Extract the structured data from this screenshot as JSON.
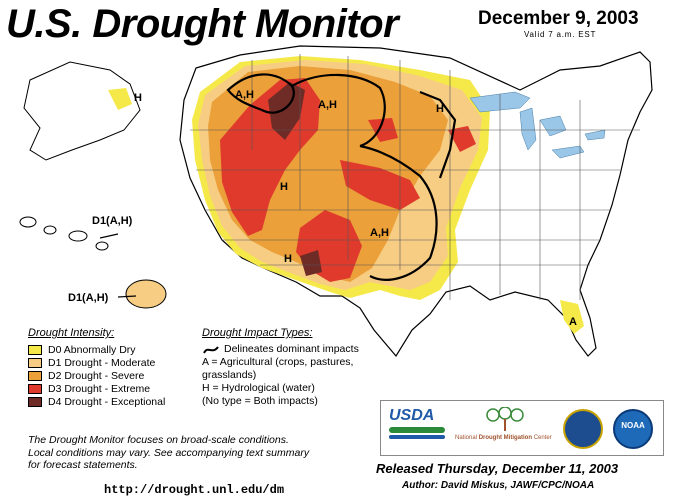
{
  "header": {
    "title": "U.S. Drought Monitor",
    "date": "December 9, 2003",
    "valid": "Valid 7 a.m. EST"
  },
  "colors": {
    "d0": "#f5e94a",
    "d1": "#f7cd84",
    "d2": "#eba03a",
    "d3": "#df3a2c",
    "d4": "#6f2b26",
    "water": "#9ac6e8",
    "land": "#ffffff"
  },
  "map_labels": {
    "nw": "A,H",
    "north": "A,H",
    "upper_midwest": "H",
    "great_basin": "H",
    "plains": "A,H",
    "southwest": "H",
    "florida": "A",
    "alaska": "H",
    "hawaii_1": "D1(A,H)",
    "hawaii_2": "D1(A,H)"
  },
  "legend": {
    "intensity_heading": "Drought Intensity:",
    "items": [
      {
        "label": "D0 Abnormally Dry",
        "color": "#f5e94a"
      },
      {
        "label": "D1 Drought - Moderate",
        "color": "#f7cd84"
      },
      {
        "label": "D2 Drought - Severe",
        "color": "#eba03a"
      },
      {
        "label": "D3 Drought - Extreme",
        "color": "#df3a2c"
      },
      {
        "label": "D4 Drought - Exceptional",
        "color": "#6f2b26"
      }
    ],
    "impact_heading": "Drought Impact Types:",
    "impact_line": "Delineates dominant impacts",
    "impact_a": "A = Agricultural (crops, pastures,",
    "impact_a2": "grasslands)",
    "impact_h": "H = Hydrological (water)",
    "impact_none": "(No type = Both impacts)"
  },
  "note": {
    "line1": "The Drought Monitor focuses on broad-scale conditions.",
    "line2": "Local conditions may vary.  See accompanying text summary",
    "line3": "for forecast statements."
  },
  "url": "http://drought.unl.edu/dm",
  "released": "Released Thursday, December 11, 2003",
  "author": "Author: David Miskus, JAWF/CPC/NOAA",
  "logos": {
    "usda": "USDA",
    "ndmc_1": "National",
    "ndmc_2": "Drought Mitigation",
    "ndmc_3": "Center",
    "noaa": "NOAA",
    "doc": "DEPT OF COMMERCE"
  }
}
